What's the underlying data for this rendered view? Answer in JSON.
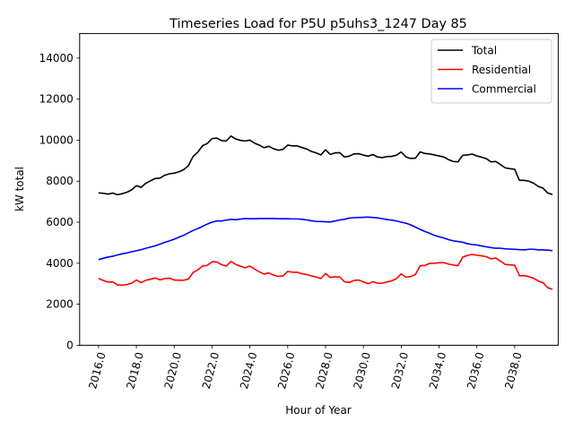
{
  "chart_data": {
    "type": "line",
    "title": "Timeseries Load for P5U p5uhs3_1247  Day 85",
    "xlabel": "Hour of Year",
    "ylabel": "kW total",
    "xlim": [
      2015.0,
      2040.3
    ],
    "ylim": [
      0,
      15200
    ],
    "x_start": 2016.0,
    "x_step": 0.25,
    "x_ticks": [
      2016,
      2018,
      2020,
      2022,
      2024,
      2026,
      2028,
      2030,
      2032,
      2034,
      2036,
      2038
    ],
    "x_tick_labels": [
      "2016.0",
      "2018.0",
      "2020.0",
      "2022.0",
      "2024.0",
      "2026.0",
      "2028.0",
      "2030.0",
      "2032.0",
      "2034.0",
      "2036.0",
      "2038.0"
    ],
    "y_ticks": [
      0,
      2000,
      4000,
      6000,
      8000,
      10000,
      12000,
      14000
    ],
    "y_tick_labels": [
      "0",
      "2000",
      "4000",
      "6000",
      "8000",
      "10000",
      "12000",
      "14000"
    ],
    "grid": false,
    "legend_position": "top-right",
    "series": [
      {
        "name": "Total",
        "color": "#000000",
        "values": [
          7430,
          7410,
          7370,
          7420,
          7340,
          7390,
          7460,
          7580,
          7780,
          7700,
          7900,
          8020,
          8130,
          8150,
          8290,
          8360,
          8390,
          8460,
          8560,
          8760,
          9210,
          9420,
          9730,
          9840,
          10080,
          10100,
          9980,
          9960,
          10200,
          10060,
          9990,
          9960,
          10000,
          9850,
          9760,
          9630,
          9700,
          9580,
          9510,
          9550,
          9760,
          9720,
          9720,
          9640,
          9570,
          9450,
          9380,
          9280,
          9530,
          9300,
          9380,
          9390,
          9180,
          9220,
          9330,
          9340,
          9270,
          9220,
          9300,
          9180,
          9150,
          9200,
          9210,
          9270,
          9420,
          9180,
          9110,
          9120,
          9430,
          9350,
          9330,
          9280,
          9230,
          9180,
          9050,
          8960,
          8940,
          9260,
          9280,
          9320,
          9230,
          9170,
          9100,
          8940,
          8960,
          8810,
          8650,
          8610,
          8580,
          8040,
          8040,
          8000,
          7900,
          7740,
          7660,
          7420,
          7350
        ]
      },
      {
        "name": "Residential",
        "color": "#ff0000",
        "values": [
          3260,
          3160,
          3080,
          3090,
          2940,
          2930,
          2960,
          3030,
          3180,
          3050,
          3170,
          3220,
          3280,
          3190,
          3250,
          3270,
          3180,
          3170,
          3170,
          3230,
          3550,
          3680,
          3860,
          3900,
          4070,
          4060,
          3930,
          3860,
          4090,
          3940,
          3850,
          3780,
          3860,
          3710,
          3580,
          3470,
          3530,
          3420,
          3360,
          3380,
          3600,
          3560,
          3560,
          3490,
          3450,
          3380,
          3330,
          3250,
          3500,
          3300,
          3340,
          3330,
          3100,
          3060,
          3160,
          3180,
          3090,
          3000,
          3100,
          3020,
          3030,
          3090,
          3140,
          3250,
          3480,
          3320,
          3350,
          3450,
          3880,
          3890,
          3990,
          4000,
          4020,
          4030,
          3960,
          3910,
          3880,
          4300,
          4380,
          4430,
          4390,
          4360,
          4320,
          4210,
          4250,
          4100,
          3940,
          3920,
          3900,
          3390,
          3400,
          3340,
          3270,
          3130,
          3050,
          2800,
          2730
        ]
      },
      {
        "name": "Commercial",
        "color": "#0000ff",
        "values": [
          4180,
          4240,
          4300,
          4340,
          4400,
          4460,
          4500,
          4560,
          4610,
          4660,
          4730,
          4790,
          4850,
          4930,
          5020,
          5090,
          5170,
          5270,
          5360,
          5480,
          5600,
          5690,
          5800,
          5910,
          6000,
          6060,
          6060,
          6100,
          6140,
          6120,
          6150,
          6180,
          6170,
          6170,
          6180,
          6180,
          6180,
          6180,
          6170,
          6170,
          6170,
          6160,
          6160,
          6140,
          6110,
          6070,
          6040,
          6030,
          6020,
          6010,
          6060,
          6110,
          6140,
          6200,
          6220,
          6230,
          6240,
          6250,
          6230,
          6210,
          6170,
          6130,
          6100,
          6060,
          6000,
          5950,
          5870,
          5760,
          5650,
          5550,
          5460,
          5360,
          5290,
          5230,
          5150,
          5090,
          5060,
          5020,
          4950,
          4910,
          4890,
          4840,
          4800,
          4760,
          4730,
          4730,
          4700,
          4690,
          4680,
          4660,
          4650,
          4680,
          4680,
          4650,
          4650,
          4640,
          4610
        ]
      }
    ]
  }
}
